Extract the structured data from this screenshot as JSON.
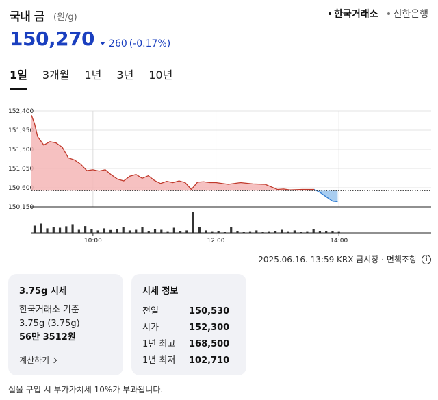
{
  "header": {
    "title": "국내 금",
    "unit": "(원/g)",
    "sources": [
      {
        "label": "한국거래소",
        "active": true
      },
      {
        "label": "신한은행",
        "active": false
      }
    ]
  },
  "price": {
    "current": "150,270",
    "change": "260",
    "change_pct": "(-0.17%)",
    "direction": "down",
    "color": "#1a3fbf"
  },
  "tabs": [
    {
      "label": "1일",
      "active": true
    },
    {
      "label": "3개월",
      "active": false
    },
    {
      "label": "1년",
      "active": false
    },
    {
      "label": "3년",
      "active": false
    },
    {
      "label": "10년",
      "active": false
    }
  ],
  "chart_data": {
    "type": "area",
    "y_tick_labels": [
      "152,400",
      "151,950",
      "151,500",
      "151,050",
      "150,600",
      "150,150"
    ],
    "y_ticks": [
      152400,
      151950,
      151500,
      151050,
      150600,
      150150
    ],
    "ylim": [
      150150,
      152400
    ],
    "x_tick_labels": [
      "10:00",
      "12:00",
      "14:00"
    ],
    "x_range_hours": [
      9.0,
      15.5
    ],
    "baseline": 150530,
    "colors": {
      "up_fill": "#f4b6b6",
      "up_line": "#c0392b",
      "down_fill": "#a8cdf0",
      "down_line": "#2e7bd1"
    },
    "series": [
      {
        "x": [
          9.0,
          9.05,
          9.1,
          9.2,
          9.3,
          9.4,
          9.5,
          9.6,
          9.7,
          9.8,
          9.9,
          10.0,
          10.1,
          10.2,
          10.3,
          10.4,
          10.5,
          10.6,
          10.7,
          10.8,
          10.9,
          11.0,
          11.1,
          11.2,
          11.3,
          11.4,
          11.5,
          11.6,
          11.7,
          11.8,
          11.9,
          12.0,
          12.2,
          12.4,
          12.6,
          12.8,
          13.0,
          13.1,
          13.2,
          13.4,
          13.6,
          13.7,
          13.8,
          13.9,
          13.98
        ],
        "y": [
          152300,
          152100,
          151800,
          151600,
          151680,
          151650,
          151550,
          151300,
          151250,
          151150,
          151000,
          151020,
          150990,
          151020,
          150900,
          150800,
          150760,
          150870,
          150910,
          150820,
          150880,
          150770,
          150700,
          150750,
          150720,
          150760,
          150720,
          150560,
          150730,
          150740,
          150720,
          150720,
          150680,
          150720,
          150690,
          150680,
          150560,
          150570,
          150550,
          150560,
          150560,
          150480,
          150380,
          150280,
          150270
        ]
      }
    ],
    "volumes": [
      0.35,
      0.45,
      0.22,
      0.3,
      0.25,
      0.32,
      0.42,
      0.15,
      0.33,
      0.2,
      0.12,
      0.22,
      0.14,
      0.2,
      0.3,
      0.12,
      0.15,
      0.28,
      0.1,
      0.2,
      0.15,
      0.08,
      0.25,
      0.1,
      0.12,
      1.0,
      0.3,
      0.12,
      0.08,
      0.1,
      0.05,
      0.3,
      0.1,
      0.06,
      0.08,
      0.12,
      0.05,
      0.08,
      0.1,
      0.15,
      0.08,
      0.12,
      0.05,
      0.08,
      0.18,
      0.1,
      0.1,
      0.1,
      0.08
    ]
  },
  "market_note": {
    "text": "2025.06.16. 13:59 KRX 금시장 · 면책조항",
    "icon": "info-icon"
  },
  "card_price": {
    "title": "3.75g 시세",
    "line1": "한국거래소 기준",
    "line2": "3.75g (3.75g)",
    "value": "56만 3512원",
    "link": "계산하기"
  },
  "card_info": {
    "title": "시세 정보",
    "rows": [
      {
        "label": "전일",
        "value": "150,530"
      },
      {
        "label": "시가",
        "value": "152,300"
      },
      {
        "label": "1년 최고",
        "value": "168,500"
      },
      {
        "label": "1년 최저",
        "value": "102,710"
      }
    ]
  },
  "vat_note": "실물 구입 시 부가가치세 10%가 부과됩니다."
}
